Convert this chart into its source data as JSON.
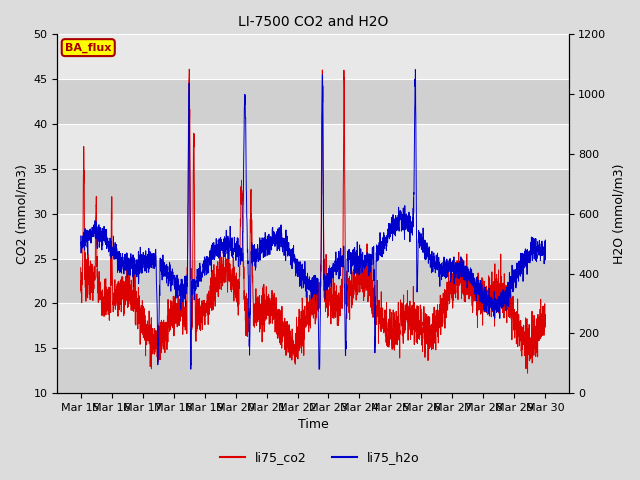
{
  "title": "LI-7500 CO2 and H2O",
  "xlabel": "Time",
  "ylabel_left": "CO2 (mmol/m3)",
  "ylabel_right": "H2O (mmol/m3)",
  "ylim_left": [
    10,
    50
  ],
  "ylim_right": [
    0,
    1200
  ],
  "yticks_left": [
    10,
    15,
    20,
    25,
    30,
    35,
    40,
    45,
    50
  ],
  "yticks_right": [
    0,
    200,
    400,
    600,
    800,
    1000,
    1200
  ],
  "co2_color": "#dd0000",
  "h2o_color": "#0000cc",
  "bg_color": "#dcdcdc",
  "annotation_text": "BA_flux",
  "annotation_bg": "#ffff00",
  "annotation_fg": "#aa0000",
  "legend_co2": "li75_co2",
  "legend_h2o": "li75_h2o",
  "xtick_labels": [
    "Mar 15",
    "Mar 16",
    "Mar 17",
    "Mar 18",
    "Mar 19",
    "Mar 20",
    "Mar 21",
    "Mar 22",
    "Mar 23",
    "Mar 24",
    "Mar 25",
    "Mar 26",
    "Mar 27",
    "Mar 28",
    "Mar 29",
    "Mar 30"
  ],
  "n_points": 3000,
  "seed": 7
}
